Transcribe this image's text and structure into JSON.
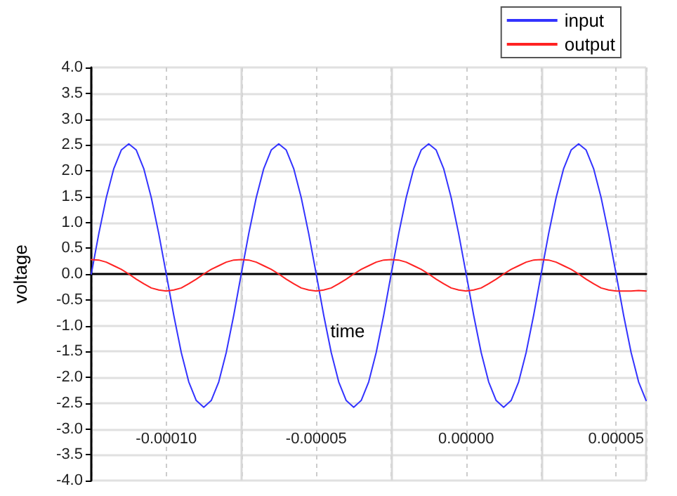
{
  "chart_data": {
    "type": "line",
    "xlabel": "time",
    "ylabel": "voltage",
    "xlim": [
      -0.000125,
      6e-05
    ],
    "ylim": [
      -4,
      4
    ],
    "xticks": [
      {
        "value": -0.0001,
        "label": "-0.00010"
      },
      {
        "value": -7.5e-05,
        "label": null
      },
      {
        "value": -5e-05,
        "label": "-0.00005"
      },
      {
        "value": -2.5e-05,
        "label": null
      },
      {
        "value": 0,
        "label": "0.00000"
      },
      {
        "value": 2.5e-05,
        "label": null
      },
      {
        "value": 5e-05,
        "label": "0.00005"
      }
    ],
    "yticks": [
      {
        "value": -4,
        "label": "-4.0"
      },
      {
        "value": -3.5,
        "label": "-3.5"
      },
      {
        "value": -3,
        "label": "-3.0"
      },
      {
        "value": -2.5,
        "label": "-2.5"
      },
      {
        "value": -2,
        "label": "-2.0"
      },
      {
        "value": -1.5,
        "label": "-1.5"
      },
      {
        "value": -1,
        "label": "-1.0"
      },
      {
        "value": -0.5,
        "label": "-0.5"
      },
      {
        "value": 0,
        "label": "0.0"
      },
      {
        "value": 0.5,
        "label": "0.5"
      },
      {
        "value": 1,
        "label": "1.0"
      },
      {
        "value": 1.5,
        "label": "1.5"
      },
      {
        "value": 2,
        "label": "2.0"
      },
      {
        "value": 2.5,
        "label": "2.5"
      },
      {
        "value": 3,
        "label": "3.0"
      },
      {
        "value": 3.5,
        "label": "3.5"
      },
      {
        "value": 4,
        "label": "4.0"
      }
    ],
    "x": [
      -0.000125,
      -0.0001225,
      -0.00012,
      -0.0001175,
      -0.000115,
      -0.0001125,
      -0.00011,
      -0.0001075,
      -0.000105,
      -0.0001025,
      -0.0001,
      -9.75e-05,
      -9.5e-05,
      -9.25e-05,
      -9e-05,
      -8.75e-05,
      -8.5e-05,
      -8.25e-05,
      -8e-05,
      -7.75e-05,
      -7.5e-05,
      -7.25e-05,
      -7e-05,
      -6.75e-05,
      -6.5e-05,
      -6.25e-05,
      -6e-05,
      -5.75e-05,
      -5.5e-05,
      -5.25e-05,
      -5e-05,
      -4.75e-05,
      -4.5e-05,
      -4.25e-05,
      -4e-05,
      -3.75e-05,
      -3.5e-05,
      -3.25e-05,
      -3e-05,
      -2.75e-05,
      -2.5e-05,
      -2.25e-05,
      -2e-05,
      -1.75e-05,
      -1.5e-05,
      -1.25e-05,
      -1e-05,
      -7.5e-06,
      -5e-06,
      -2.5e-06,
      0,
      2.5e-06,
      5e-06,
      7.5e-06,
      1e-05,
      1.25e-05,
      1.5e-05,
      1.75e-05,
      2e-05,
      2.25e-05,
      2.5e-05,
      2.75e-05,
      3e-05,
      3.25e-05,
      3.5e-05,
      3.75e-05,
      4e-05,
      4.25e-05,
      4.5e-05,
      4.75e-05,
      5e-05,
      5.25e-05,
      5.5e-05,
      5.75e-05,
      6e-05
    ],
    "series": [
      {
        "name": "input",
        "color": "#3333ff",
        "values": [
          0,
          0.78,
          1.48,
          2.04,
          2.4,
          2.52,
          2.4,
          2.04,
          1.48,
          0.78,
          0,
          -0.8,
          -1.52,
          -2.09,
          -2.45,
          -2.58,
          -2.45,
          -2.09,
          -1.52,
          -0.8,
          0,
          0.78,
          1.48,
          2.04,
          2.4,
          2.52,
          2.4,
          2.04,
          1.48,
          0.78,
          0,
          -0.8,
          -1.52,
          -2.09,
          -2.45,
          -2.58,
          -2.45,
          -2.09,
          -1.52,
          -0.8,
          0,
          0.78,
          1.48,
          2.04,
          2.4,
          2.52,
          2.4,
          2.04,
          1.48,
          0.78,
          0,
          -0.8,
          -1.52,
          -2.09,
          -2.45,
          -2.58,
          -2.45,
          -2.09,
          -1.52,
          -0.8,
          0,
          0.78,
          1.48,
          2.04,
          2.4,
          2.52,
          2.4,
          2.04,
          1.48,
          0.78,
          0,
          -0.8,
          -1.52,
          -2.09,
          -2.45
        ]
      },
      {
        "name": "output",
        "color": "#ff2222",
        "values": [
          0.28,
          0.27,
          0.23,
          0.16,
          0.09,
          0,
          -0.1,
          -0.19,
          -0.27,
          -0.31,
          -0.33,
          -0.31,
          -0.27,
          -0.19,
          -0.1,
          0,
          0.09,
          0.16,
          0.23,
          0.27,
          0.28,
          0.27,
          0.23,
          0.16,
          0.09,
          0,
          -0.1,
          -0.19,
          -0.27,
          -0.31,
          -0.33,
          -0.31,
          -0.27,
          -0.19,
          -0.1,
          0,
          0.09,
          0.16,
          0.23,
          0.27,
          0.28,
          0.27,
          0.23,
          0.16,
          0.09,
          0,
          -0.1,
          -0.19,
          -0.27,
          -0.31,
          -0.33,
          -0.31,
          -0.27,
          -0.19,
          -0.1,
          0,
          0.09,
          0.16,
          0.23,
          0.27,
          0.28,
          0.27,
          0.23,
          0.16,
          0.09,
          0,
          -0.1,
          -0.19,
          -0.27,
          -0.31,
          -0.33,
          -0.33,
          -0.33,
          -0.32,
          -0.33
        ]
      }
    ],
    "grid": true,
    "legend": "top right",
    "marker": "none",
    "line_style": "solid"
  }
}
